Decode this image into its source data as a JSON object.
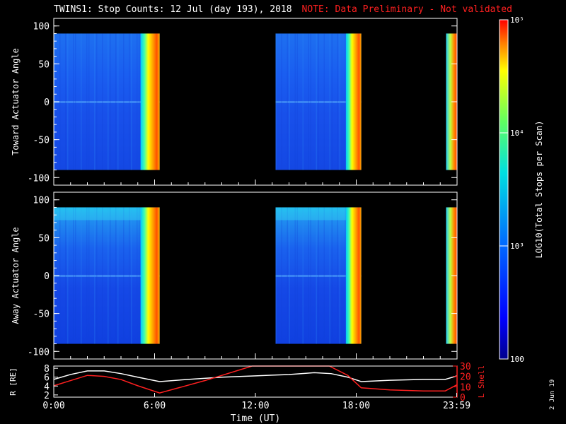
{
  "header": {
    "title": "TWINS1: Stop Counts: 12 Jul (day 193), 2018",
    "note": "NOTE: Data Preliminary - Not validated"
  },
  "stamp": "2 Jun 19",
  "colors": {
    "background": "#000000",
    "axes": "#ffffff",
    "note": "#ff2020",
    "r_line": "#ffffff",
    "lshell_line": "#ff2020"
  },
  "chart_data": [
    {
      "type": "heatmap",
      "ylabel": "Toward Actuator Angle",
      "yticks": [
        -100,
        -50,
        0,
        50,
        100
      ],
      "ylim": [
        -110,
        110
      ],
      "data_range": [
        -90,
        90
      ],
      "x_hours": [
        0,
        24
      ],
      "data_segments": [
        [
          0,
          6.3
        ],
        [
          13.2,
          18.3
        ],
        [
          23.35,
          24
        ]
      ],
      "zscale": "log"
    },
    {
      "type": "heatmap",
      "ylabel": "Away Actuator Angle",
      "yticks": [
        -100,
        -50,
        0,
        50,
        100
      ],
      "ylim": [
        -110,
        110
      ],
      "data_range": [
        -90,
        90
      ],
      "x_hours": [
        0,
        24
      ],
      "data_segments": [
        [
          0,
          6.3
        ],
        [
          13.2,
          18.3
        ],
        [
          23.35,
          24
        ]
      ],
      "zscale": "log"
    },
    {
      "type": "line",
      "ylabel": "R [RE]",
      "ylabel2": "L Shell",
      "yticks": [
        2,
        4,
        6,
        8
      ],
      "ylim": [
        1.5,
        8.5
      ],
      "yticks2": [
        0,
        10,
        20,
        30
      ],
      "ylim2": [
        0,
        30
      ],
      "xlabel": "Time (UT)",
      "xtick_labels": [
        "0:00",
        "6:00",
        "12:00",
        "18:00",
        "23:59"
      ],
      "xtick_hours": [
        0,
        6,
        12,
        18,
        23.98
      ],
      "series": [
        {
          "axis": "left",
          "x": [
            0,
            1,
            2,
            3,
            4,
            5,
            6.3,
            8,
            10,
            12,
            14,
            15.5,
            16.5,
            17.5,
            18.3,
            20,
            22,
            23.3,
            24
          ],
          "values": [
            5.5,
            6.6,
            7.4,
            7.4,
            6.8,
            6.0,
            5.0,
            5.5,
            6.0,
            6.3,
            6.6,
            7.0,
            6.8,
            6.0,
            5.0,
            5.3,
            5.5,
            5.5,
            6.3
          ]
        },
        {
          "axis": "right",
          "x": [
            0,
            1,
            2,
            3,
            4,
            5,
            6.3,
            9,
            11.8,
            16.4,
            17.5,
            18.3,
            20,
            22,
            23.3,
            24
          ],
          "values": [
            11,
            16,
            21,
            20,
            17,
            11,
            4,
            16,
            30,
            30,
            21,
            9,
            7,
            6,
            6,
            12
          ]
        }
      ]
    }
  ],
  "colorbar": {
    "label": "LOG10(Total Stops per Scan)",
    "ticks": [
      {
        "label": "100",
        "value": 100
      },
      {
        "label": "10³",
        "value": 1000
      },
      {
        "label": "10⁴",
        "value": 10000
      },
      {
        "label": "10⁵",
        "value": 100000
      }
    ],
    "zlim": [
      100,
      100000
    ]
  }
}
